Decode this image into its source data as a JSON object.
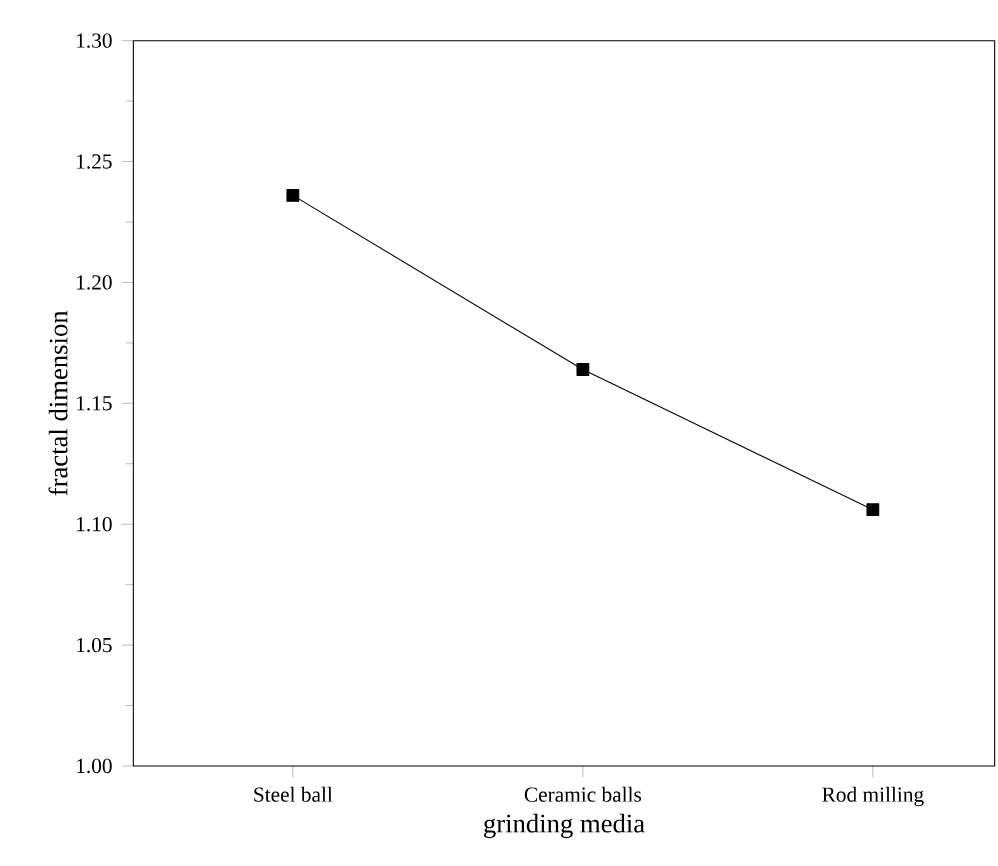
{
  "chart_data": {
    "type": "line",
    "xlabel": "grinding media",
    "ylabel": "fractal dimension",
    "categories": [
      "Steel ball",
      "Ceramic balls",
      "Rod milling"
    ],
    "series": [
      {
        "color": "#000000",
        "values": [
          1.236,
          1.164,
          1.106
        ]
      }
    ],
    "ylim": [
      1.0,
      1.3
    ],
    "yticks": [
      {
        "value": 1.0,
        "label": "1.00"
      },
      {
        "value": 1.05,
        "label": "1.05"
      },
      {
        "value": 1.1,
        "label": "1.10"
      },
      {
        "value": 1.15,
        "label": "1.15"
      },
      {
        "value": 1.2,
        "label": "1.20"
      },
      {
        "value": 1.25,
        "label": "1.25"
      },
      {
        "value": 1.3,
        "label": "1.30"
      }
    ],
    "marker": "square",
    "line_style": "solid"
  }
}
